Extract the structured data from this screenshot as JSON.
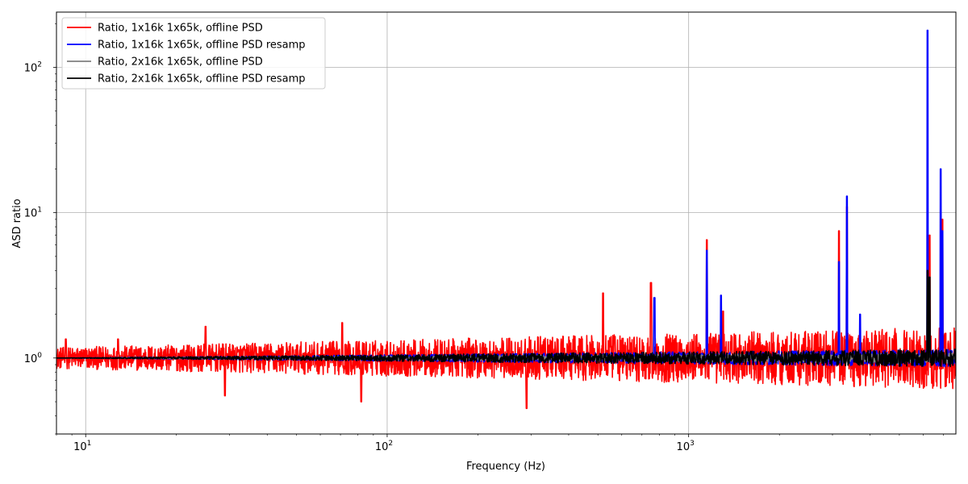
{
  "chart_data": {
    "type": "line",
    "xlabel": "Frequency (Hz)",
    "ylabel": "ASD ratio",
    "x_scale": "log",
    "y_scale": "log",
    "xlim": [
      8,
      7700
    ],
    "ylim": [
      0.3,
      240
    ],
    "grid": true,
    "legend_position": "top-left",
    "x_ticks": [
      {
        "value": 10,
        "base": "10",
        "exp": "1"
      },
      {
        "value": 100,
        "base": "10",
        "exp": "2"
      },
      {
        "value": 1000,
        "base": "10",
        "exp": "3"
      }
    ],
    "y_ticks": [
      {
        "value": 1,
        "base": "10",
        "exp": "0"
      },
      {
        "value": 10,
        "base": "10",
        "exp": "1"
      },
      {
        "value": 100,
        "base": "10",
        "exp": "2"
      }
    ],
    "series": [
      {
        "name": "Ratio, 1x16k 1x65k, offline PSD",
        "color": "#ff0000",
        "baseline": 1.0,
        "spread_start": 0.12,
        "spread_end": 0.35,
        "peaks": [
          [
            8.6,
            1.35
          ],
          [
            12.8,
            1.35
          ],
          [
            25,
            1.65
          ],
          [
            29,
            0.55
          ],
          [
            71,
            1.75
          ],
          [
            82,
            0.5
          ],
          [
            290,
            0.45
          ],
          [
            520,
            2.8
          ],
          [
            750,
            3.3
          ],
          [
            1150,
            6.5
          ],
          [
            1300,
            2.1
          ],
          [
            3150,
            7.5
          ],
          [
            3350,
            11.0
          ],
          [
            6300,
            7.0
          ],
          [
            6950,
            9.0
          ]
        ]
      },
      {
        "name": "Ratio, 1x16k 1x65k, offline PSD resamp",
        "color": "#0000ff",
        "baseline": 1.0,
        "spread_start": 0.0,
        "spread_end": 0.1,
        "peaks": [
          [
            770,
            2.6
          ],
          [
            1150,
            5.5
          ],
          [
            1280,
            2.7
          ],
          [
            3150,
            4.6
          ],
          [
            3350,
            13.0
          ],
          [
            3700,
            2.0
          ],
          [
            6200,
            180.0
          ],
          [
            6850,
            20.0
          ],
          [
            6950,
            7.5
          ]
        ]
      },
      {
        "name": "Ratio, 2x16k 1x65k, offline PSD",
        "color": "#808080",
        "baseline": 1.0,
        "spread_start": 0.0,
        "spread_end": 0.06,
        "peaks": [
          [
            6200,
            3.5
          ]
        ]
      },
      {
        "name": "Ratio, 2x16k 1x65k, offline PSD resamp",
        "color": "#000000",
        "baseline": 1.0,
        "spread_start": 0.0,
        "spread_end": 0.1,
        "peaks": [
          [
            6200,
            4.0
          ],
          [
            6300,
            3.6
          ]
        ]
      }
    ]
  }
}
